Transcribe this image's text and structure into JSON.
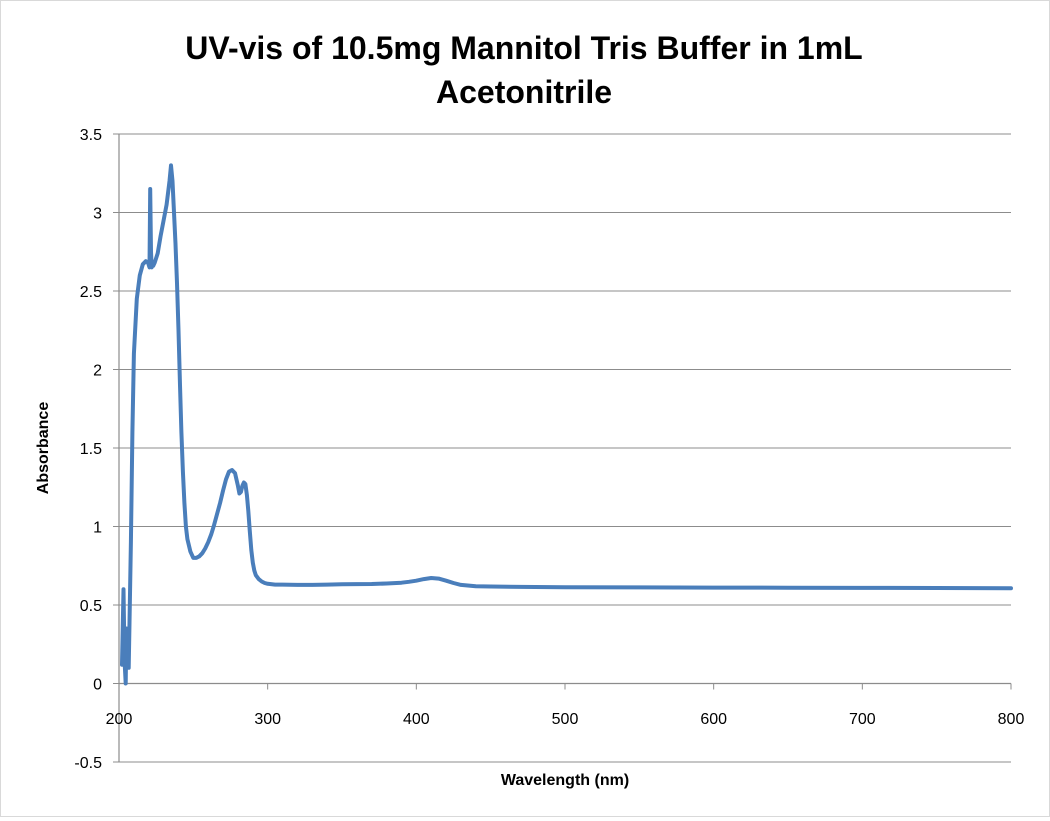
{
  "chart_data": {
    "type": "line",
    "title_lines": [
      "UV-vis of 10.5mg Mannitol Tris Buffer in 1mL",
      "Acetonitrile"
    ],
    "xlabel": "Wavelength (nm)",
    "ylabel": "Absorbance",
    "xlim": [
      200,
      800
    ],
    "ylim": [
      -0.5,
      3.5
    ],
    "xticks": [
      200,
      300,
      400,
      500,
      600,
      700,
      800
    ],
    "yticks": [
      -0.5,
      0,
      0.5,
      1,
      1.5,
      2,
      2.5,
      3,
      3.5
    ],
    "grid": "horizontal",
    "legend": "none",
    "line_color": "#4a7ebb",
    "series": [
      {
        "x": [
          202,
          203,
          203.5,
          204,
          204.5,
          205,
          205.5,
          206,
          206.5,
          207,
          208,
          209,
          210,
          212,
          214,
          216,
          218,
          219.5,
          220.5,
          221,
          221.5,
          222,
          222.5,
          223,
          224,
          226,
          228,
          230,
          232,
          234,
          235,
          236,
          237,
          238,
          239,
          240,
          241,
          242,
          243,
          244,
          245,
          246,
          248,
          250,
          252,
          254,
          256,
          258,
          260,
          262,
          264,
          266,
          268,
          270,
          272,
          274,
          276,
          278,
          280,
          281,
          282,
          283,
          284,
          285,
          286,
          287,
          288,
          289,
          290,
          291,
          292,
          294,
          296,
          298,
          300,
          305,
          310,
          320,
          330,
          340,
          350,
          360,
          370,
          380,
          390,
          395,
          400,
          405,
          410,
          415,
          420,
          425,
          430,
          440,
          450,
          470,
          500,
          550,
          600,
          650,
          700,
          750,
          800
        ],
        "y": [
          0.12,
          0.6,
          0.3,
          0.1,
          0.0,
          0.35,
          0.1,
          0.28,
          0.1,
          0.35,
          0.9,
          1.6,
          2.1,
          2.45,
          2.6,
          2.67,
          2.69,
          2.68,
          2.65,
          3.15,
          2.75,
          2.65,
          2.66,
          2.66,
          2.68,
          2.74,
          2.85,
          2.95,
          3.05,
          3.2,
          3.3,
          3.2,
          3.0,
          2.8,
          2.55,
          2.25,
          1.9,
          1.6,
          1.35,
          1.15,
          1.0,
          0.92,
          0.84,
          0.8,
          0.8,
          0.81,
          0.83,
          0.86,
          0.9,
          0.95,
          1.01,
          1.08,
          1.15,
          1.23,
          1.3,
          1.35,
          1.36,
          1.34,
          1.26,
          1.21,
          1.22,
          1.26,
          1.28,
          1.27,
          1.2,
          1.1,
          0.97,
          0.85,
          0.77,
          0.72,
          0.69,
          0.665,
          0.65,
          0.64,
          0.635,
          0.63,
          0.63,
          0.628,
          0.628,
          0.63,
          0.632,
          0.633,
          0.634,
          0.637,
          0.642,
          0.648,
          0.655,
          0.665,
          0.672,
          0.668,
          0.655,
          0.64,
          0.628,
          0.62,
          0.618,
          0.615,
          0.613,
          0.612,
          0.611,
          0.61,
          0.609,
          0.608,
          0.607
        ]
      }
    ]
  }
}
